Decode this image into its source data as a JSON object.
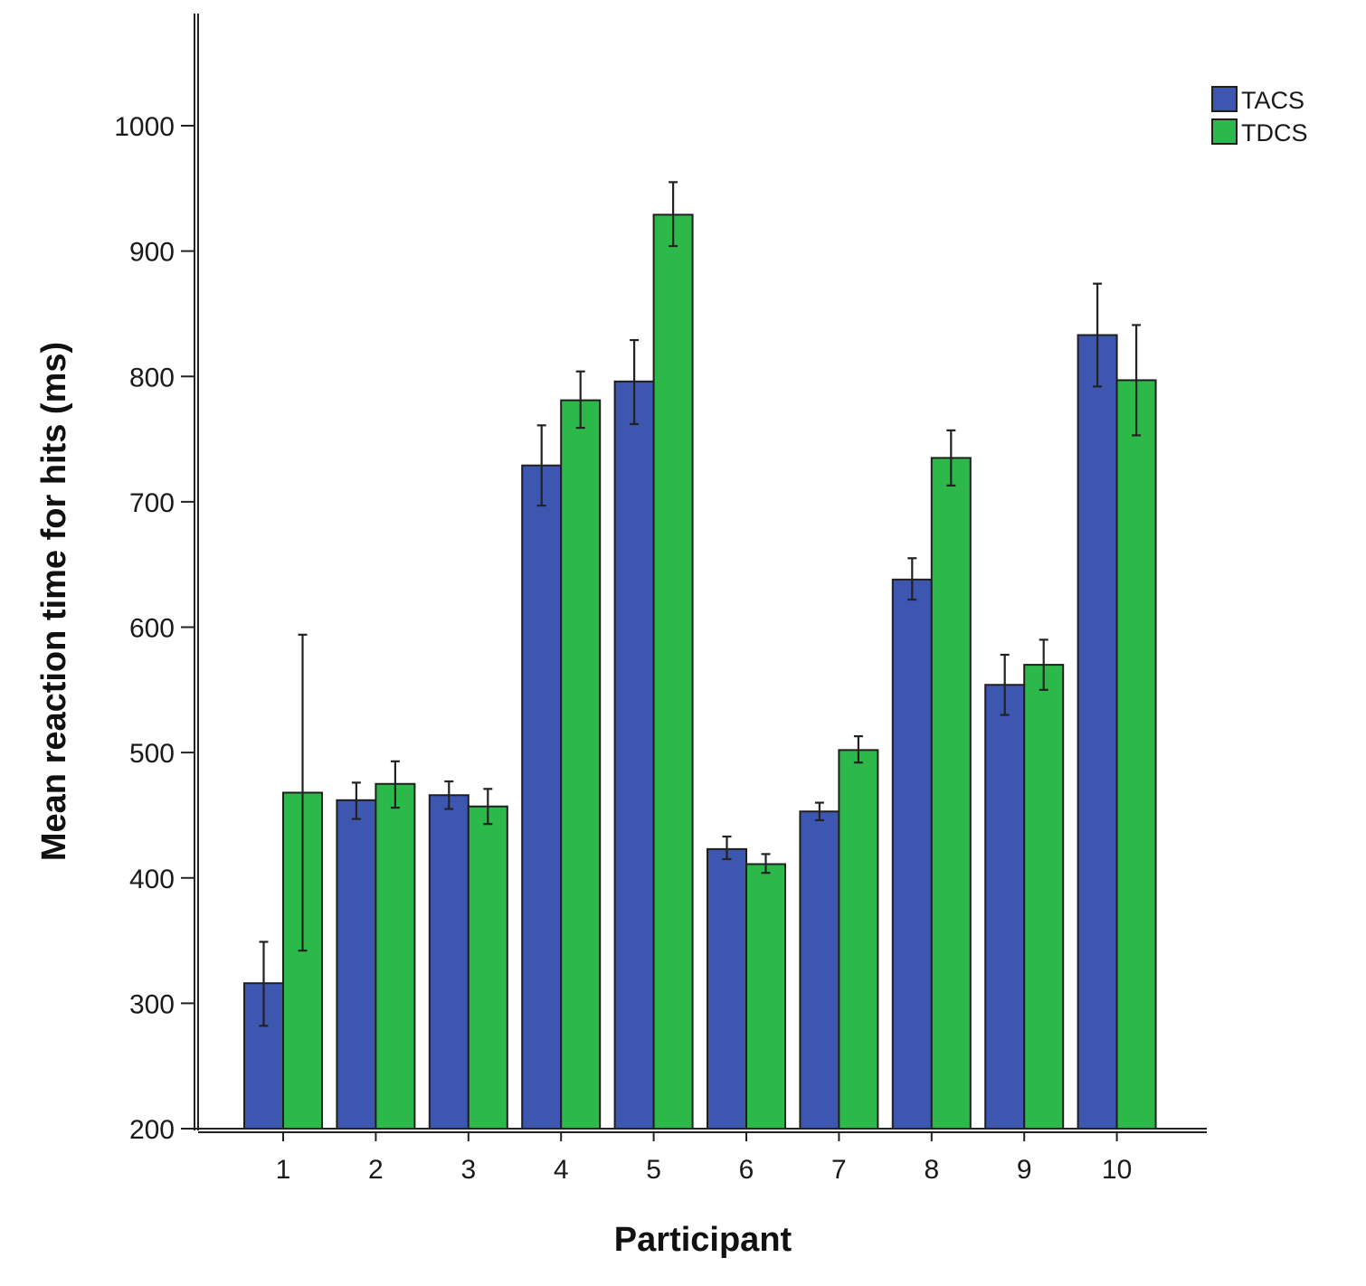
{
  "chart_data": {
    "type": "bar",
    "title": "",
    "xlabel": "Participant",
    "ylabel": "Mean reaction time for hits (ms)",
    "ylim": [
      200,
      1000
    ],
    "yticks": [
      200,
      300,
      400,
      500,
      600,
      700,
      800,
      900,
      1000
    ],
    "categories": [
      "1",
      "2",
      "3",
      "4",
      "5",
      "6",
      "7",
      "8",
      "9",
      "10"
    ],
    "series": [
      {
        "name": "TACS",
        "color": "#3d56b0",
        "values": [
          316,
          462,
          466,
          729,
          796,
          423,
          453,
          638,
          554,
          833
        ],
        "error_low": [
          282,
          447,
          455,
          697,
          762,
          415,
          446,
          622,
          530,
          792
        ],
        "error_high": [
          349,
          476,
          477,
          761,
          829,
          433,
          460,
          655,
          578,
          874
        ]
      },
      {
        "name": "TDCS",
        "color": "#2db84a",
        "values": [
          468,
          475,
          457,
          781,
          929,
          411,
          502,
          735,
          570,
          797
        ],
        "error_low": [
          342,
          456,
          443,
          759,
          904,
          404,
          492,
          713,
          550,
          753
        ],
        "error_high": [
          594,
          493,
          471,
          804,
          955,
          419,
          513,
          757,
          590,
          841
        ]
      }
    ],
    "legend": {
      "position": "top-right"
    },
    "grid": false
  }
}
